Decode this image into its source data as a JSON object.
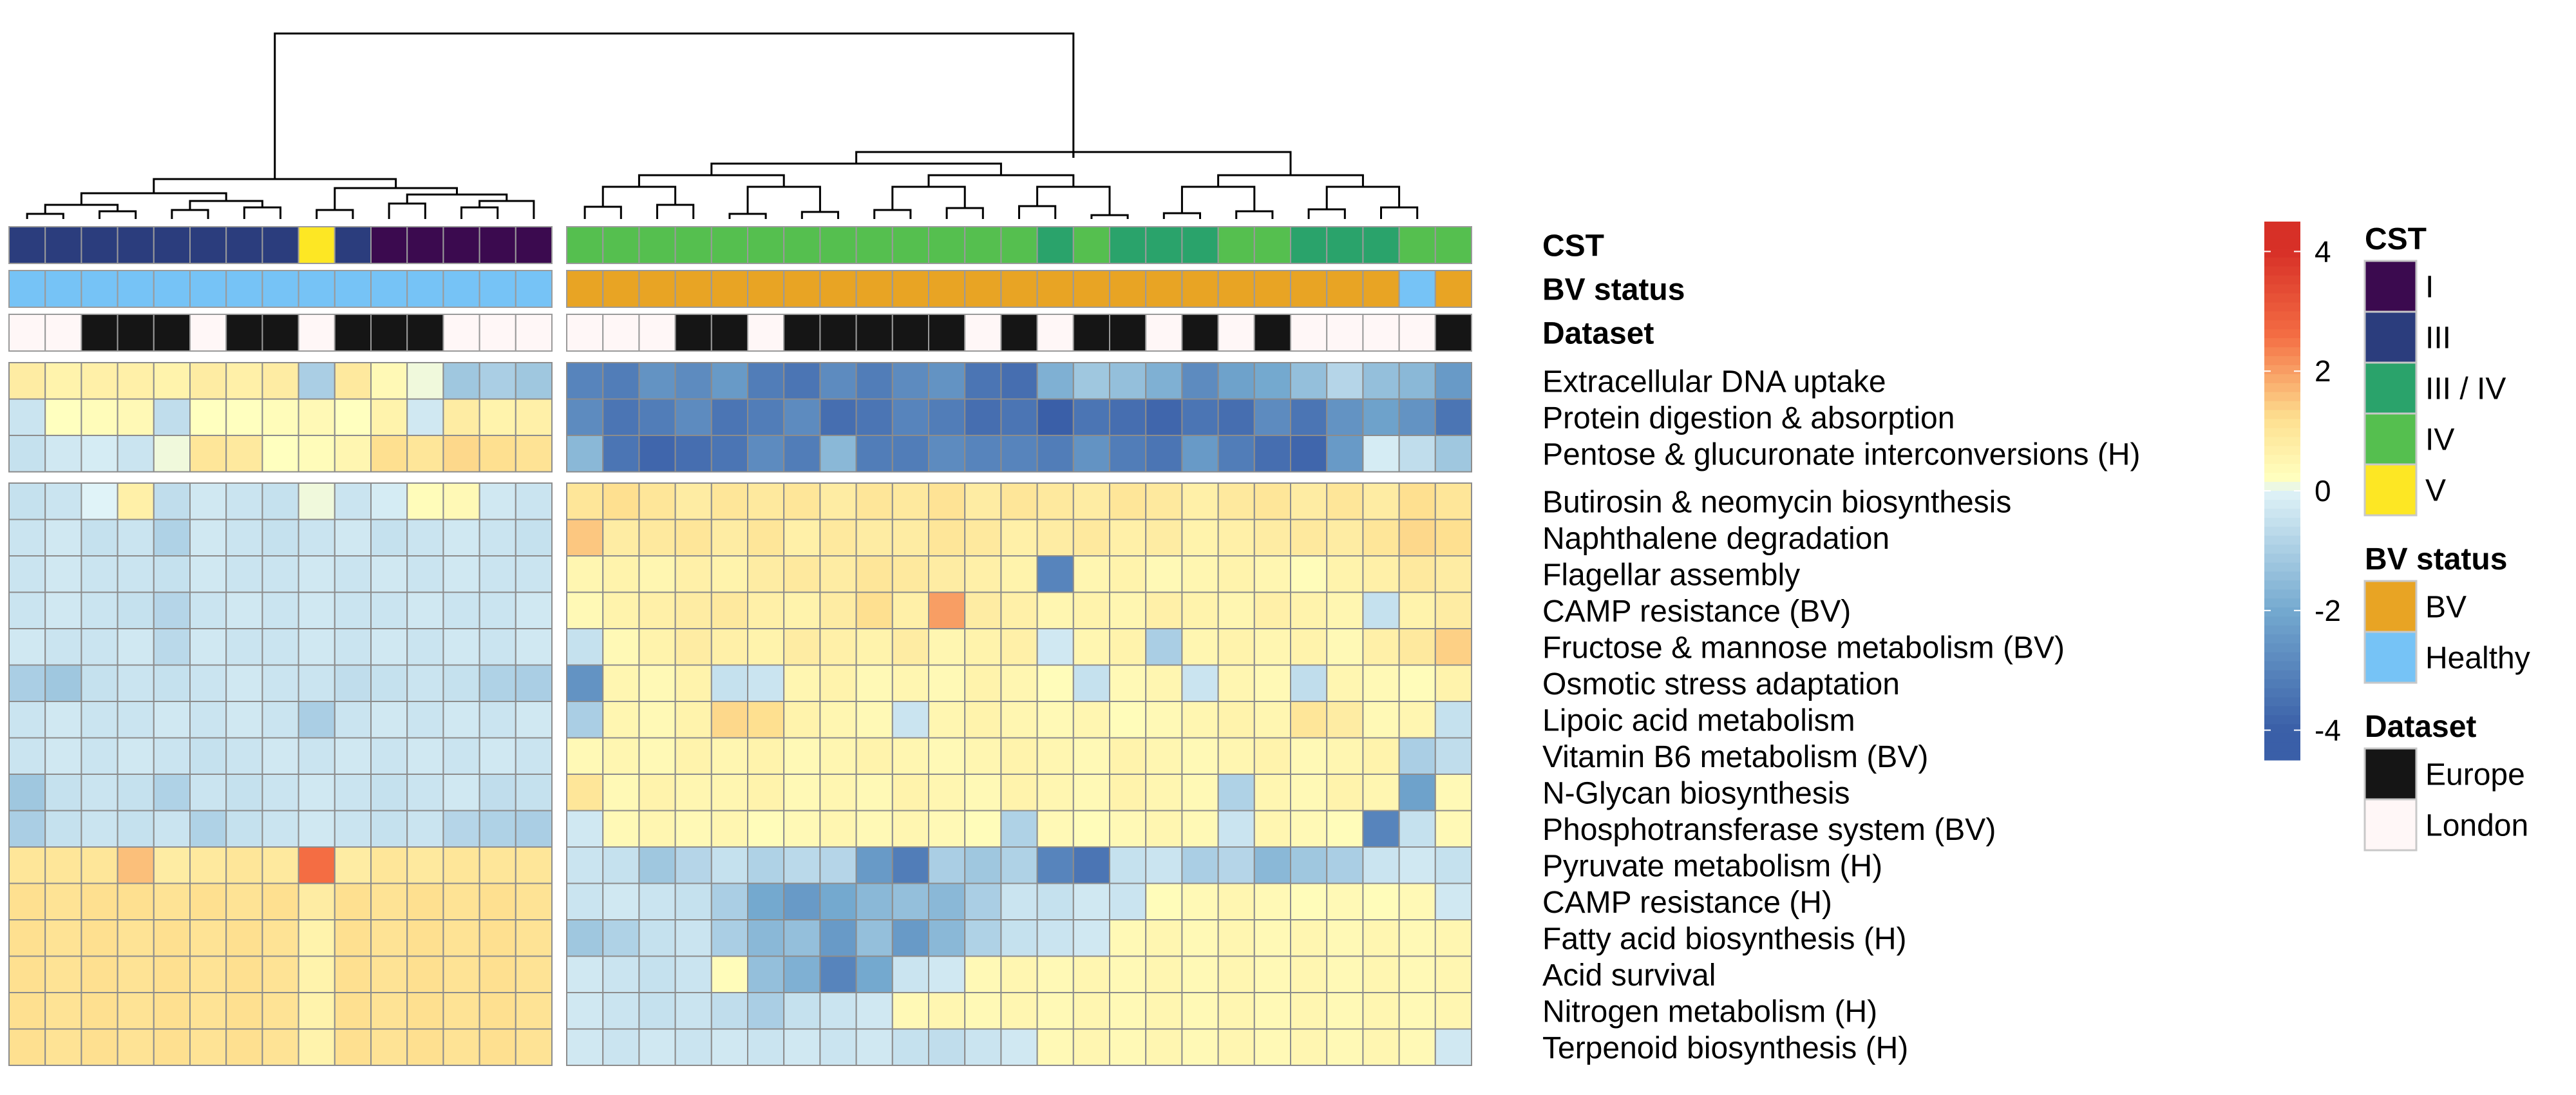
{
  "chart_data": {
    "type": "heatmap",
    "title": "",
    "n_columns": 40,
    "column_split": [
      15,
      25
    ],
    "annotation_rows": [
      "CST",
      "BV status",
      "Dataset"
    ],
    "annotations": {
      "CST": [
        "III",
        "III",
        "III",
        "III",
        "III",
        "III",
        "III",
        "III",
        "V",
        "III",
        "I",
        "I",
        "I",
        "I",
        "I",
        "IV",
        "IV",
        "IV",
        "IV",
        "IV",
        "IV",
        "IV",
        "IV",
        "IV",
        "IV",
        "IV",
        "IV",
        "IV",
        "III / IV",
        "IV",
        "III / IV",
        "III / IV",
        "III / IV",
        "IV",
        "IV",
        "III / IV",
        "III / IV",
        "III / IV",
        "IV",
        "IV"
      ],
      "BV status": [
        "Healthy",
        "Healthy",
        "Healthy",
        "Healthy",
        "Healthy",
        "Healthy",
        "Healthy",
        "Healthy",
        "Healthy",
        "Healthy",
        "Healthy",
        "Healthy",
        "Healthy",
        "Healthy",
        "Healthy",
        "BV",
        "BV",
        "BV",
        "BV",
        "BV",
        "BV",
        "BV",
        "BV",
        "BV",
        "BV",
        "BV",
        "BV",
        "BV",
        "BV",
        "BV",
        "BV",
        "BV",
        "BV",
        "BV",
        "BV",
        "BV",
        "BV",
        "BV",
        "Healthy",
        "BV"
      ],
      "Dataset": [
        "London",
        "London",
        "Europe",
        "Europe",
        "Europe",
        "London",
        "Europe",
        "Europe",
        "London",
        "Europe",
        "Europe",
        "Europe",
        "London",
        "London",
        "London",
        "London",
        "London",
        "London",
        "Europe",
        "Europe",
        "London",
        "Europe",
        "Europe",
        "Europe",
        "Europe",
        "Europe",
        "London",
        "Europe",
        "London",
        "Europe",
        "Europe",
        "London",
        "Europe",
        "London",
        "Europe",
        "London",
        "London",
        "London",
        "London",
        "Europe"
      ]
    },
    "row_groups": [
      3,
      16
    ],
    "rows": [
      "Extracellular DNA uptake",
      "Protein digestion & absorption",
      "Pentose & glucuronate interconversions (H)",
      "Butirosin & neomycin biosynthesis",
      "Naphthalene degradation",
      "Flagellar assembly",
      "CAMP resistance (BV)",
      "Fructose & mannose metabolism (BV)",
      "Osmotic stress adaptation",
      "Lipoic acid metabolism",
      "Vitamin B6 metabolism (BV)",
      "N-Glycan biosynthesis",
      "Phosphotransferase system (BV)",
      "Pyruvate metabolism (H)",
      "CAMP resistance (H)",
      "Fatty acid biosynthesis (H)",
      "Acid survival",
      "Nitrogen metabolism (H)",
      "Terpenoid biosynthesis (H)"
    ],
    "values": [
      [
        0.8,
        0.6,
        0.7,
        0.7,
        0.6,
        0.8,
        0.7,
        0.8,
        -1.0,
        0.9,
        0.4,
        0.1,
        -1.2,
        -1.0,
        -1.2,
        -3.0,
        -3.2,
        -2.6,
        -2.8,
        -2.4,
        -3.2,
        -3.4,
        -2.8,
        -3.2,
        -2.8,
        -2.6,
        -3.4,
        -3.6,
        -1.8,
        -1.2,
        -1.4,
        -1.8,
        -2.8,
        -2.2,
        -2.0,
        -1.4,
        -0.8,
        -1.4,
        -1.6,
        -2.4
      ],
      [
        -0.4,
        0.2,
        0.3,
        0.4,
        -0.6,
        0.2,
        0.2,
        0.3,
        0.4,
        0.2,
        0.6,
        -0.3,
        0.8,
        0.6,
        0.7,
        -2.8,
        -3.4,
        -3.2,
        -2.8,
        -3.4,
        -3.2,
        -2.8,
        -3.6,
        -3.4,
        -3.0,
        -3.2,
        -3.6,
        -3.4,
        -4.0,
        -3.4,
        -3.6,
        -3.8,
        -3.4,
        -3.6,
        -2.8,
        -3.4,
        -2.6,
        -2.2,
        -2.6,
        -3.4
      ],
      [
        -0.5,
        -0.3,
        -0.2,
        -0.4,
        0.1,
        1.0,
        0.9,
        0.2,
        0.3,
        0.5,
        1.2,
        1.0,
        1.3,
        1.2,
        1.1,
        -1.6,
        -3.4,
        -3.8,
        -3.6,
        -3.4,
        -2.8,
        -3.2,
        -1.6,
        -3.2,
        -3.2,
        -2.8,
        -3.0,
        -3.0,
        -3.2,
        -2.6,
        -3.2,
        -3.4,
        -2.4,
        -3.2,
        -3.6,
        -3.8,
        -2.4,
        -0.2,
        -0.6,
        -1.2
      ],
      [
        -0.5,
        -0.4,
        0.0,
        0.7,
        -0.6,
        -0.3,
        -0.4,
        -0.5,
        0.1,
        -0.4,
        -0.2,
        0.3,
        0.4,
        -0.3,
        -0.4,
        1.0,
        1.2,
        1.0,
        0.8,
        1.0,
        0.9,
        1.0,
        0.8,
        1.0,
        0.9,
        1.1,
        0.8,
        1.0,
        0.9,
        0.8,
        1.0,
        0.9,
        0.7,
        0.9,
        1.0,
        0.8,
        1.0,
        0.8,
        1.2,
        1.0
      ],
      [
        -0.4,
        -0.3,
        -0.5,
        -0.4,
        -0.9,
        -0.3,
        -0.4,
        -0.5,
        -0.4,
        -0.3,
        -0.5,
        -0.4,
        -0.3,
        -0.4,
        -0.5,
        1.5,
        0.8,
        0.9,
        1.0,
        0.8,
        1.0,
        0.7,
        0.9,
        0.8,
        0.8,
        1.0,
        0.9,
        0.7,
        0.8,
        0.9,
        0.7,
        0.8,
        0.6,
        0.7,
        0.8,
        0.9,
        0.8,
        1.0,
        1.3,
        1.2
      ],
      [
        -0.4,
        -0.3,
        -0.4,
        -0.4,
        -0.5,
        -0.3,
        -0.4,
        -0.4,
        -0.3,
        -0.4,
        -0.3,
        -0.4,
        -0.3,
        -0.4,
        -0.4,
        0.5,
        0.6,
        0.5,
        0.7,
        0.6,
        0.8,
        0.9,
        0.8,
        1.0,
        0.9,
        0.8,
        0.7,
        0.6,
        -3.0,
        0.5,
        0.6,
        0.4,
        0.5,
        0.6,
        0.5,
        0.3,
        0.6,
        0.7,
        0.9,
        0.8
      ],
      [
        -0.4,
        -0.3,
        -0.4,
        -0.5,
        -0.8,
        -0.4,
        -0.3,
        -0.4,
        -0.3,
        -0.4,
        -0.4,
        -0.3,
        -0.4,
        -0.4,
        -0.3,
        0.4,
        0.6,
        0.7,
        0.8,
        0.9,
        0.7,
        0.6,
        0.8,
        1.2,
        0.7,
        2.0,
        0.8,
        0.7,
        0.5,
        0.6,
        0.5,
        0.7,
        0.6,
        0.5,
        0.7,
        0.6,
        0.5,
        -0.5,
        0.6,
        0.8
      ],
      [
        -0.3,
        -0.4,
        -0.4,
        -0.3,
        -0.7,
        -0.3,
        -0.4,
        -0.4,
        -0.3,
        -0.4,
        -0.3,
        -0.4,
        -0.3,
        -0.4,
        -0.3,
        -0.5,
        0.4,
        0.6,
        0.8,
        0.7,
        0.6,
        0.8,
        0.7,
        0.6,
        0.8,
        0.5,
        0.6,
        0.7,
        -0.3,
        0.5,
        0.6,
        -1.0,
        0.5,
        0.6,
        0.5,
        0.6,
        0.4,
        0.7,
        0.9,
        1.4
      ],
      [
        -1.0,
        -1.2,
        -0.5,
        -0.4,
        -0.5,
        -0.4,
        -0.3,
        -0.4,
        -0.4,
        -0.6,
        -0.5,
        -0.4,
        -0.5,
        -0.9,
        -1.0,
        -2.6,
        0.5,
        0.4,
        0.6,
        -0.5,
        -0.4,
        0.5,
        0.6,
        0.4,
        0.5,
        0.4,
        0.6,
        0.5,
        0.3,
        -0.5,
        0.4,
        0.5,
        -0.4,
        0.5,
        0.4,
        -0.6,
        0.5,
        0.4,
        0.3,
        0.6
      ],
      [
        -0.4,
        -0.3,
        -0.4,
        -0.4,
        -0.3,
        -0.4,
        -0.3,
        -0.4,
        -1.0,
        -0.4,
        -0.3,
        -0.4,
        -0.3,
        -0.4,
        -0.3,
        -1.0,
        0.5,
        0.4,
        0.6,
        1.3,
        1.2,
        0.6,
        0.5,
        0.4,
        -0.4,
        0.5,
        0.6,
        0.5,
        0.4,
        0.5,
        0.3,
        0.4,
        0.5,
        0.6,
        0.5,
        1.0,
        0.8,
        0.4,
        0.5,
        -0.5
      ],
      [
        -0.4,
        -0.3,
        -0.4,
        -0.3,
        -0.4,
        -0.5,
        -0.4,
        -0.3,
        -0.4,
        -0.3,
        -0.4,
        -0.3,
        -0.4,
        -0.3,
        -0.4,
        0.4,
        0.5,
        0.4,
        0.6,
        0.5,
        0.6,
        0.4,
        0.5,
        0.6,
        0.5,
        0.4,
        0.5,
        0.6,
        0.5,
        0.4,
        0.6,
        0.5,
        0.4,
        0.5,
        0.6,
        0.4,
        0.5,
        0.6,
        -1.0,
        -0.6
      ],
      [
        -1.2,
        -0.5,
        -0.4,
        -0.5,
        -0.9,
        -0.4,
        -0.5,
        -0.4,
        -0.3,
        -0.4,
        -0.5,
        -0.4,
        -0.3,
        -0.6,
        -0.5,
        1.0,
        0.4,
        0.6,
        0.5,
        0.5,
        0.6,
        0.4,
        0.5,
        0.4,
        0.6,
        0.5,
        0.4,
        0.6,
        0.5,
        0.4,
        0.6,
        0.5,
        0.4,
        -0.9,
        0.5,
        0.4,
        0.6,
        0.5,
        -2.2,
        0.4
      ],
      [
        -1.0,
        -0.5,
        -0.4,
        -0.5,
        -0.4,
        -0.9,
        -0.5,
        -0.4,
        -0.3,
        -0.4,
        -0.5,
        -0.4,
        -0.8,
        -0.9,
        -1.0,
        -0.3,
        0.4,
        0.5,
        0.4,
        0.5,
        0.3,
        0.4,
        0.5,
        0.4,
        0.5,
        0.4,
        0.3,
        -0.9,
        0.4,
        0.3,
        0.4,
        0.5,
        0.4,
        -0.4,
        0.5,
        0.4,
        0.3,
        -3.0,
        -0.5,
        0.4
      ],
      [
        1.0,
        1.0,
        1.0,
        1.6,
        0.8,
        0.9,
        1.0,
        0.9,
        2.6,
        0.8,
        1.0,
        0.9,
        1.0,
        1.0,
        1.0,
        -0.4,
        -0.5,
        -1.2,
        -0.8,
        -0.5,
        -0.9,
        -0.7,
        -0.8,
        -2.4,
        -3.2,
        -1.0,
        -1.2,
        -0.9,
        -3.0,
        -3.4,
        -0.5,
        -0.4,
        -1.0,
        -0.8,
        -1.6,
        -1.2,
        -1.0,
        -0.4,
        -0.3,
        -0.5
      ],
      [
        1.2,
        1.1,
        1.2,
        1.2,
        1.1,
        1.2,
        1.1,
        1.2,
        0.8,
        1.2,
        1.1,
        1.2,
        1.1,
        1.2,
        1.1,
        -0.4,
        -0.3,
        -0.4,
        -0.5,
        -1.0,
        -2.0,
        -2.4,
        -2.0,
        -1.6,
        -1.4,
        -1.6,
        -1.0,
        -0.4,
        -0.5,
        -0.3,
        -0.4,
        0.3,
        0.4,
        0.5,
        0.4,
        0.3,
        0.4,
        0.3,
        0.4,
        -0.3
      ],
      [
        1.2,
        1.1,
        1.2,
        1.1,
        1.2,
        1.1,
        1.2,
        1.1,
        0.6,
        1.2,
        1.1,
        1.2,
        1.1,
        1.2,
        1.1,
        -1.2,
        -0.9,
        -0.5,
        -0.4,
        -1.0,
        -1.6,
        -1.4,
        -2.4,
        -1.4,
        -2.4,
        -1.6,
        -0.9,
        -0.5,
        -0.4,
        -0.3,
        0.4,
        0.5,
        0.4,
        0.5,
        0.4,
        0.5,
        0.4,
        0.5,
        0.4,
        0.5
      ],
      [
        1.2,
        1.1,
        1.2,
        1.1,
        1.2,
        1.1,
        1.2,
        1.1,
        0.6,
        1.2,
        1.1,
        1.2,
        1.1,
        1.2,
        1.1,
        -0.3,
        -0.4,
        -0.5,
        -0.4,
        0.3,
        -1.4,
        -1.8,
        -3.0,
        -2.0,
        -0.4,
        -0.3,
        0.4,
        0.5,
        0.4,
        0.5,
        0.4,
        0.5,
        0.4,
        0.5,
        0.4,
        0.5,
        0.4,
        0.5,
        0.4,
        0.5
      ],
      [
        1.2,
        1.1,
        1.2,
        1.1,
        1.2,
        1.1,
        1.2,
        1.1,
        0.6,
        1.2,
        1.1,
        1.2,
        1.1,
        1.2,
        1.1,
        -0.3,
        -0.4,
        -0.5,
        -0.4,
        -0.6,
        -1.0,
        -0.5,
        -0.4,
        -0.3,
        0.4,
        0.5,
        0.4,
        0.5,
        0.4,
        0.5,
        0.4,
        0.5,
        0.4,
        0.5,
        0.4,
        0.5,
        0.4,
        0.5,
        0.4,
        0.5
      ],
      [
        1.2,
        1.1,
        1.2,
        1.1,
        1.2,
        1.1,
        1.2,
        1.1,
        0.6,
        1.2,
        1.1,
        1.2,
        1.1,
        1.2,
        1.1,
        -0.3,
        -0.4,
        -0.3,
        -0.4,
        -0.3,
        -0.4,
        -0.3,
        -0.4,
        -0.3,
        -0.5,
        -0.6,
        -0.4,
        -0.3,
        0.4,
        0.5,
        0.4,
        0.5,
        0.4,
        0.5,
        0.4,
        0.5,
        0.4,
        0.5,
        0.4,
        -0.3
      ]
    ],
    "color_scale": {
      "ticks": [
        4,
        2,
        0,
        -2,
        -4
      ],
      "range": [
        -4.5,
        4.5
      ],
      "colors": [
        "#3a5fa8",
        "#74a9cf",
        "#e0f3f8",
        "#ffffbf",
        "#fee090",
        "#f46d43",
        "#d73027"
      ]
    },
    "legends": [
      {
        "title": "CST",
        "items": [
          {
            "label": "I",
            "color": "#3b0a4f"
          },
          {
            "label": "III",
            "color": "#2b3d7d"
          },
          {
            "label": "III / IV",
            "color": "#2aa36b"
          },
          {
            "label": "IV",
            "color": "#55bf4f"
          },
          {
            "label": "V",
            "color": "#fde724"
          }
        ]
      },
      {
        "title": "BV status",
        "items": [
          {
            "label": "BV",
            "color": "#e8a424"
          },
          {
            "label": "Healthy",
            "color": "#76c3f6"
          }
        ]
      },
      {
        "title": "Dataset",
        "items": [
          {
            "label": "Europe",
            "color": "#151515"
          },
          {
            "label": "London",
            "color": "#fff7f7"
          }
        ]
      }
    ]
  }
}
